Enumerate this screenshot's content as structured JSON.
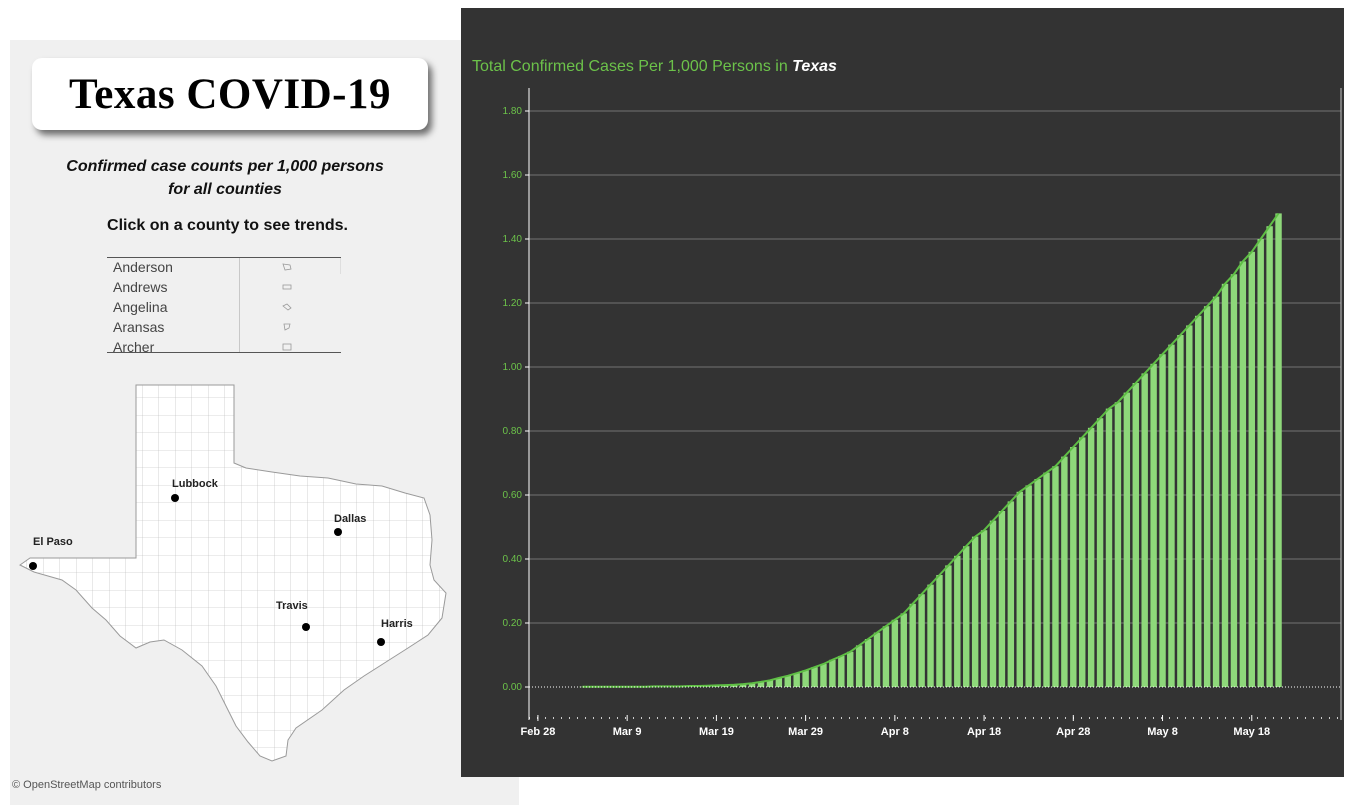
{
  "header": {
    "title": "Texas COVID-19"
  },
  "subtitle": {
    "line1": "Confirmed case counts per 1,000 persons",
    "line2": "for all counties"
  },
  "instruction": "Click on a county to see trends.",
  "county_list": [
    "Anderson",
    "Andrews",
    "Angelina",
    "Aransas",
    "Archer"
  ],
  "map": {
    "cities": [
      {
        "name": "Lubbock"
      },
      {
        "name": "Dallas"
      },
      {
        "name": "El Paso"
      },
      {
        "name": "Travis"
      },
      {
        "name": "Harris"
      }
    ],
    "credit": "© OpenStreetMap contributors"
  },
  "colors": {
    "bar": "#8ed87a",
    "line": "#5fbf45",
    "axis_text": "#6cc24a",
    "panel_bg": "#333333"
  },
  "chart_data": {
    "type": "bar",
    "title_prefix": "Total Confirmed Cases Per 1,000 Persons in",
    "title_region": "Texas",
    "x_ticks": [
      "Feb 28",
      "Mar 9",
      "Mar 19",
      "Mar 29",
      "Apr 8",
      "Apr 18",
      "Apr 28",
      "May 8",
      "May 18"
    ],
    "y_ticks": [
      "0.00",
      "0.20",
      "0.40",
      "0.60",
      "0.80",
      "1.00",
      "1.20",
      "1.40",
      "1.60",
      "1.80"
    ],
    "ylim": [
      0,
      1.8
    ],
    "x_range": [
      "Feb 27",
      "May 28"
    ],
    "dates": [
      "Mar 4",
      "Mar 5",
      "Mar 6",
      "Mar 7",
      "Mar 8",
      "Mar 9",
      "Mar 10",
      "Mar 11",
      "Mar 12",
      "Mar 13",
      "Mar 14",
      "Mar 15",
      "Mar 16",
      "Mar 17",
      "Mar 18",
      "Mar 19",
      "Mar 20",
      "Mar 21",
      "Mar 22",
      "Mar 23",
      "Mar 24",
      "Mar 25",
      "Mar 26",
      "Mar 27",
      "Mar 28",
      "Mar 29",
      "Mar 30",
      "Mar 31",
      "Apr 1",
      "Apr 2",
      "Apr 3",
      "Apr 4",
      "Apr 5",
      "Apr 6",
      "Apr 7",
      "Apr 8",
      "Apr 9",
      "Apr 10",
      "Apr 11",
      "Apr 12",
      "Apr 13",
      "Apr 14",
      "Apr 15",
      "Apr 16",
      "Apr 17",
      "Apr 18",
      "Apr 19",
      "Apr 20",
      "Apr 21",
      "Apr 22",
      "Apr 23",
      "Apr 24",
      "Apr 25",
      "Apr 26",
      "Apr 27",
      "Apr 28",
      "Apr 29",
      "Apr 30",
      "May 1",
      "May 2",
      "May 3",
      "May 4",
      "May 5",
      "May 6",
      "May 7",
      "May 8",
      "May 9",
      "May 10",
      "May 11",
      "May 12",
      "May 13",
      "May 14",
      "May 15",
      "May 16",
      "May 17",
      "May 18",
      "May 19",
      "May 20",
      "May 21"
    ],
    "values": [
      0.001,
      0.001,
      0.001,
      0.001,
      0.001,
      0.001,
      0.001,
      0.001,
      0.002,
      0.002,
      0.002,
      0.002,
      0.003,
      0.003,
      0.004,
      0.005,
      0.006,
      0.007,
      0.009,
      0.012,
      0.016,
      0.021,
      0.028,
      0.035,
      0.043,
      0.052,
      0.062,
      0.072,
      0.085,
      0.097,
      0.11,
      0.13,
      0.15,
      0.17,
      0.19,
      0.21,
      0.23,
      0.26,
      0.29,
      0.32,
      0.35,
      0.38,
      0.41,
      0.44,
      0.47,
      0.49,
      0.52,
      0.55,
      0.58,
      0.61,
      0.63,
      0.65,
      0.67,
      0.69,
      0.72,
      0.75,
      0.78,
      0.81,
      0.84,
      0.87,
      0.89,
      0.92,
      0.95,
      0.98,
      1.01,
      1.04,
      1.07,
      1.1,
      1.13,
      1.16,
      1.19,
      1.22,
      1.26,
      1.29,
      1.33,
      1.36,
      1.4,
      1.44,
      1.48
    ]
  }
}
